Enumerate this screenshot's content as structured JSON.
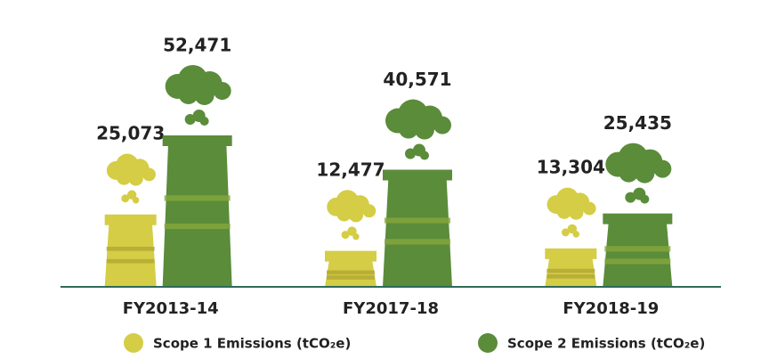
{
  "chart_data": {
    "type": "chimney",
    "categories": [
      "FY2013-14",
      "FY2017-18",
      "FY2018-19"
    ],
    "series": [
      {
        "name": "Scope 1 Emissions (tCO₂e)",
        "color": "#d4cd45",
        "values": [
          25073,
          12477,
          13304
        ],
        "value_labels": [
          "25,073",
          "12,477",
          "13,304"
        ]
      },
      {
        "name": "Scope 2 Emissions (tCO₂e)",
        "color": "#5a8c3a",
        "values": [
          52471,
          40571,
          25435
        ],
        "value_labels": [
          "52,471",
          "40,571",
          "25,435"
        ]
      }
    ]
  }
}
